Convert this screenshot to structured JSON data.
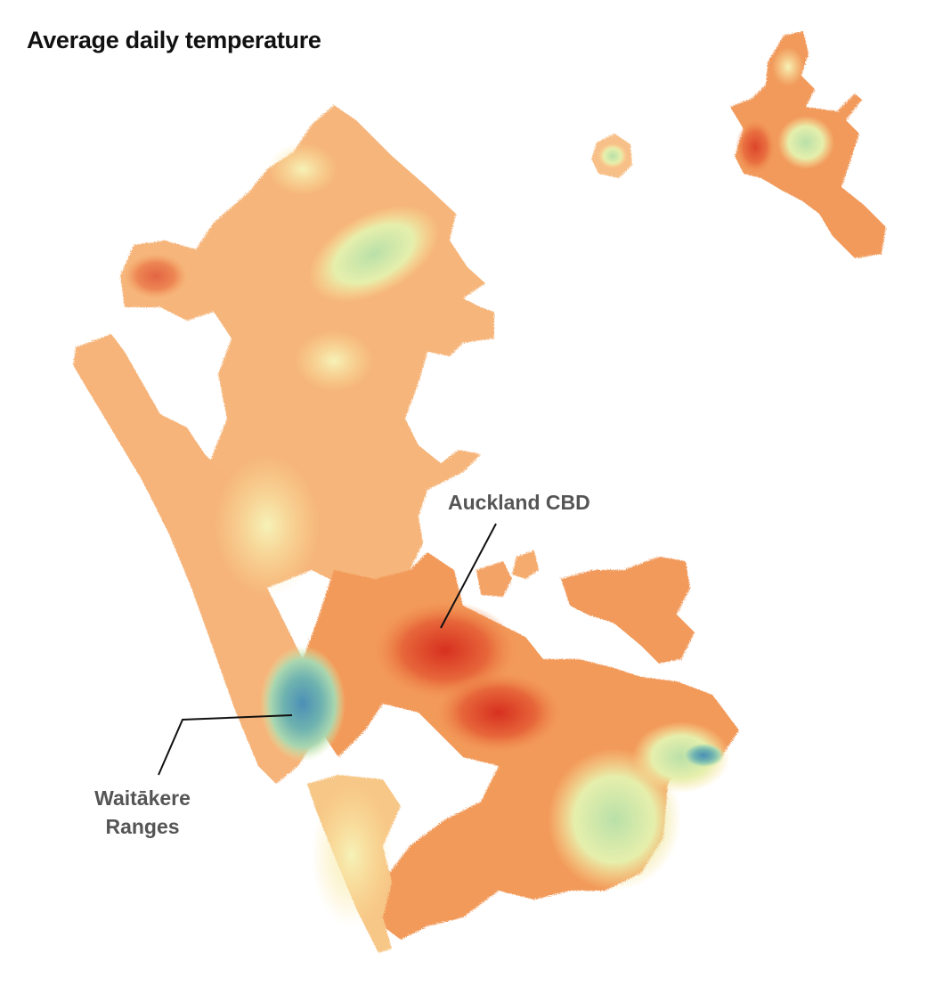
{
  "title": "Average daily temperature",
  "annotations": {
    "cbd": "Auckland CBD",
    "waitakere_line1": "Waitākere",
    "waitakere_line2": "Ranges"
  },
  "palette": {
    "hot": "#d7301f",
    "warm": "#f08a4b",
    "mild": "#f8b878",
    "cool": "#fbe49c",
    "fresh": "#c7e6ad",
    "cold": "#6fb3b0",
    "coldest": "#2c7bb6",
    "annotation_text": "#555555",
    "leader_line": "#111111"
  }
}
